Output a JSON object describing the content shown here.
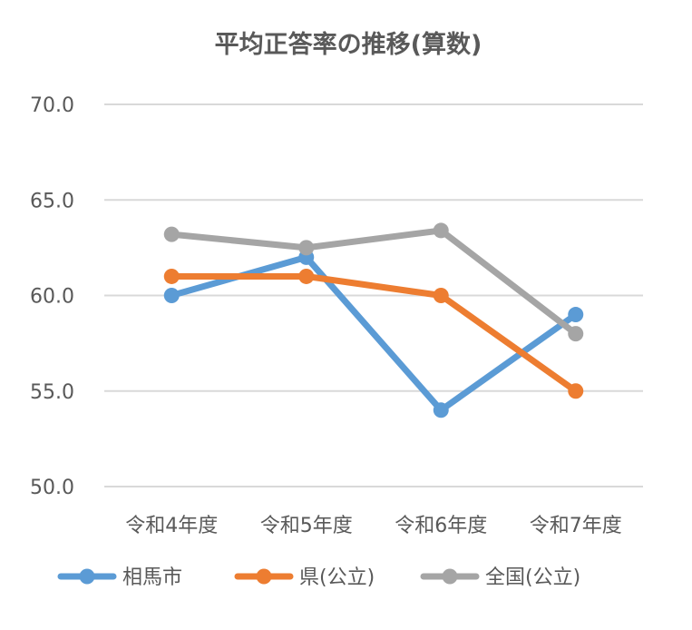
{
  "chart_data": {
    "type": "line",
    "title": "平均正答率の推移(算数)",
    "categories": [
      "令和4年度",
      "令和5年度",
      "令和6年度",
      "令和7年度"
    ],
    "ylim": [
      50,
      70
    ],
    "yticks": [
      50,
      55,
      60,
      65,
      70
    ],
    "ytick_labels": [
      "50.0",
      "55.0",
      "60.0",
      "65.0",
      "70.0"
    ],
    "grid": true,
    "legend_position": "bottom",
    "series": [
      {
        "name": "相馬市",
        "color": "#5B9BD5",
        "values": [
          60,
          62,
          54,
          59
        ]
      },
      {
        "name": "県(公立)",
        "color": "#ED7D31",
        "values": [
          61,
          61,
          60,
          55
        ]
      },
      {
        "name": "全国(公立)",
        "color": "#A5A5A5",
        "values": [
          63.2,
          62.5,
          63.4,
          58
        ]
      }
    ]
  }
}
